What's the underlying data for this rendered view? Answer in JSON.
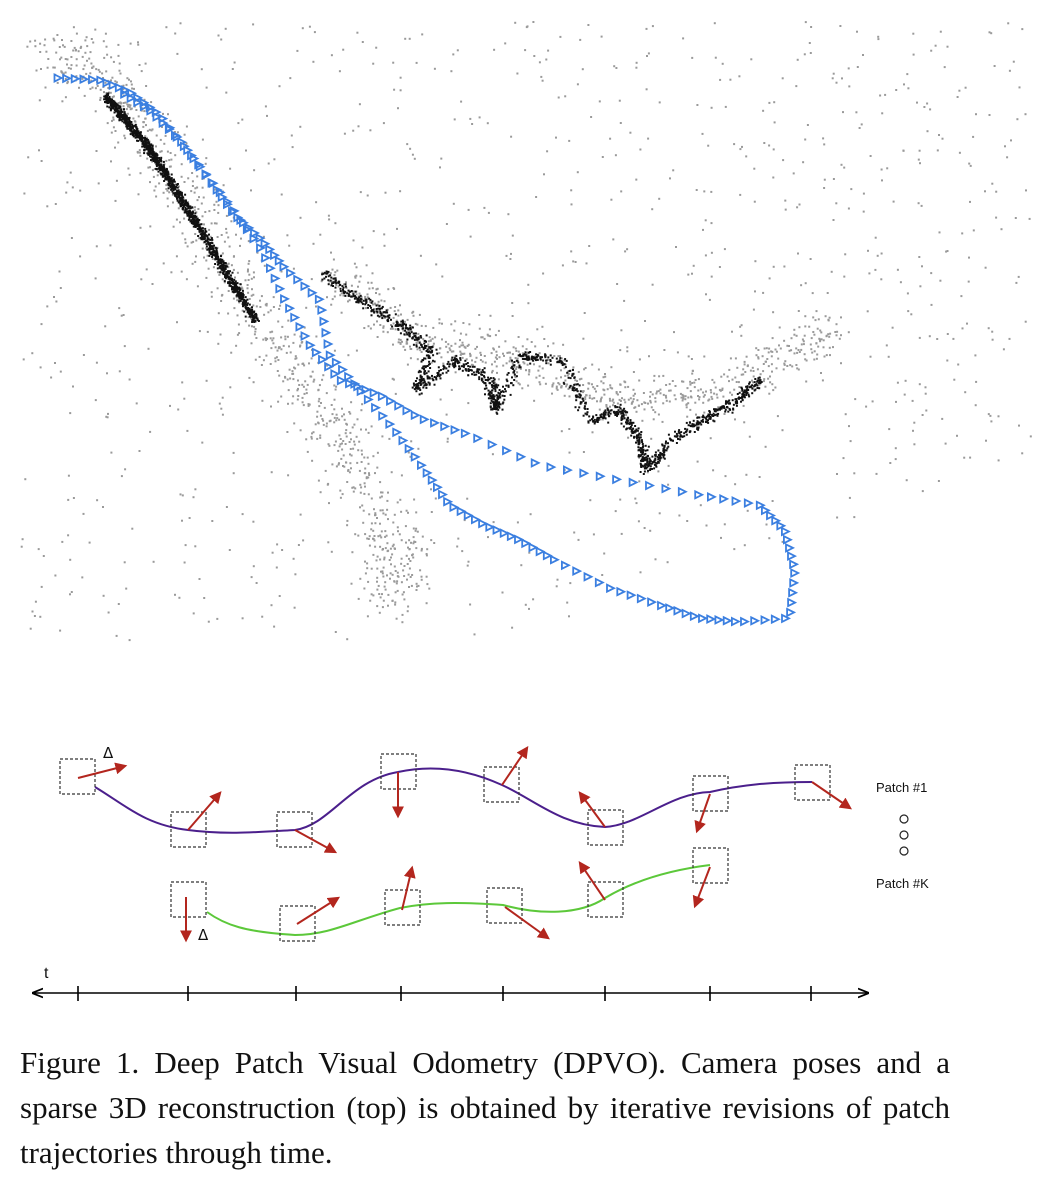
{
  "figure": {
    "caption": "Figure 1.  Deep Patch Visual Odometry (DPVO). Camera poses and a sparse 3D reconstruction (top) is obtained by iterative revisions of patch trajectories through time."
  },
  "colors": {
    "camera_pose": "#3b7fe0",
    "point_dark": "#111111",
    "point_light": "#9a9a9a",
    "patch_1_trajectory": "#4b1f8c",
    "patch_k_trajectory": "#5cc83a",
    "update_arrow": "#b3261e",
    "axis": "#000000"
  },
  "diagram": {
    "delta_label": "Δ",
    "delta_label_2": "Δ",
    "patch_first_label": "Patch #1",
    "patch_last_label": "Patch #K",
    "time_label": "t",
    "timesteps": 8,
    "ellipsis_dots": 3
  }
}
